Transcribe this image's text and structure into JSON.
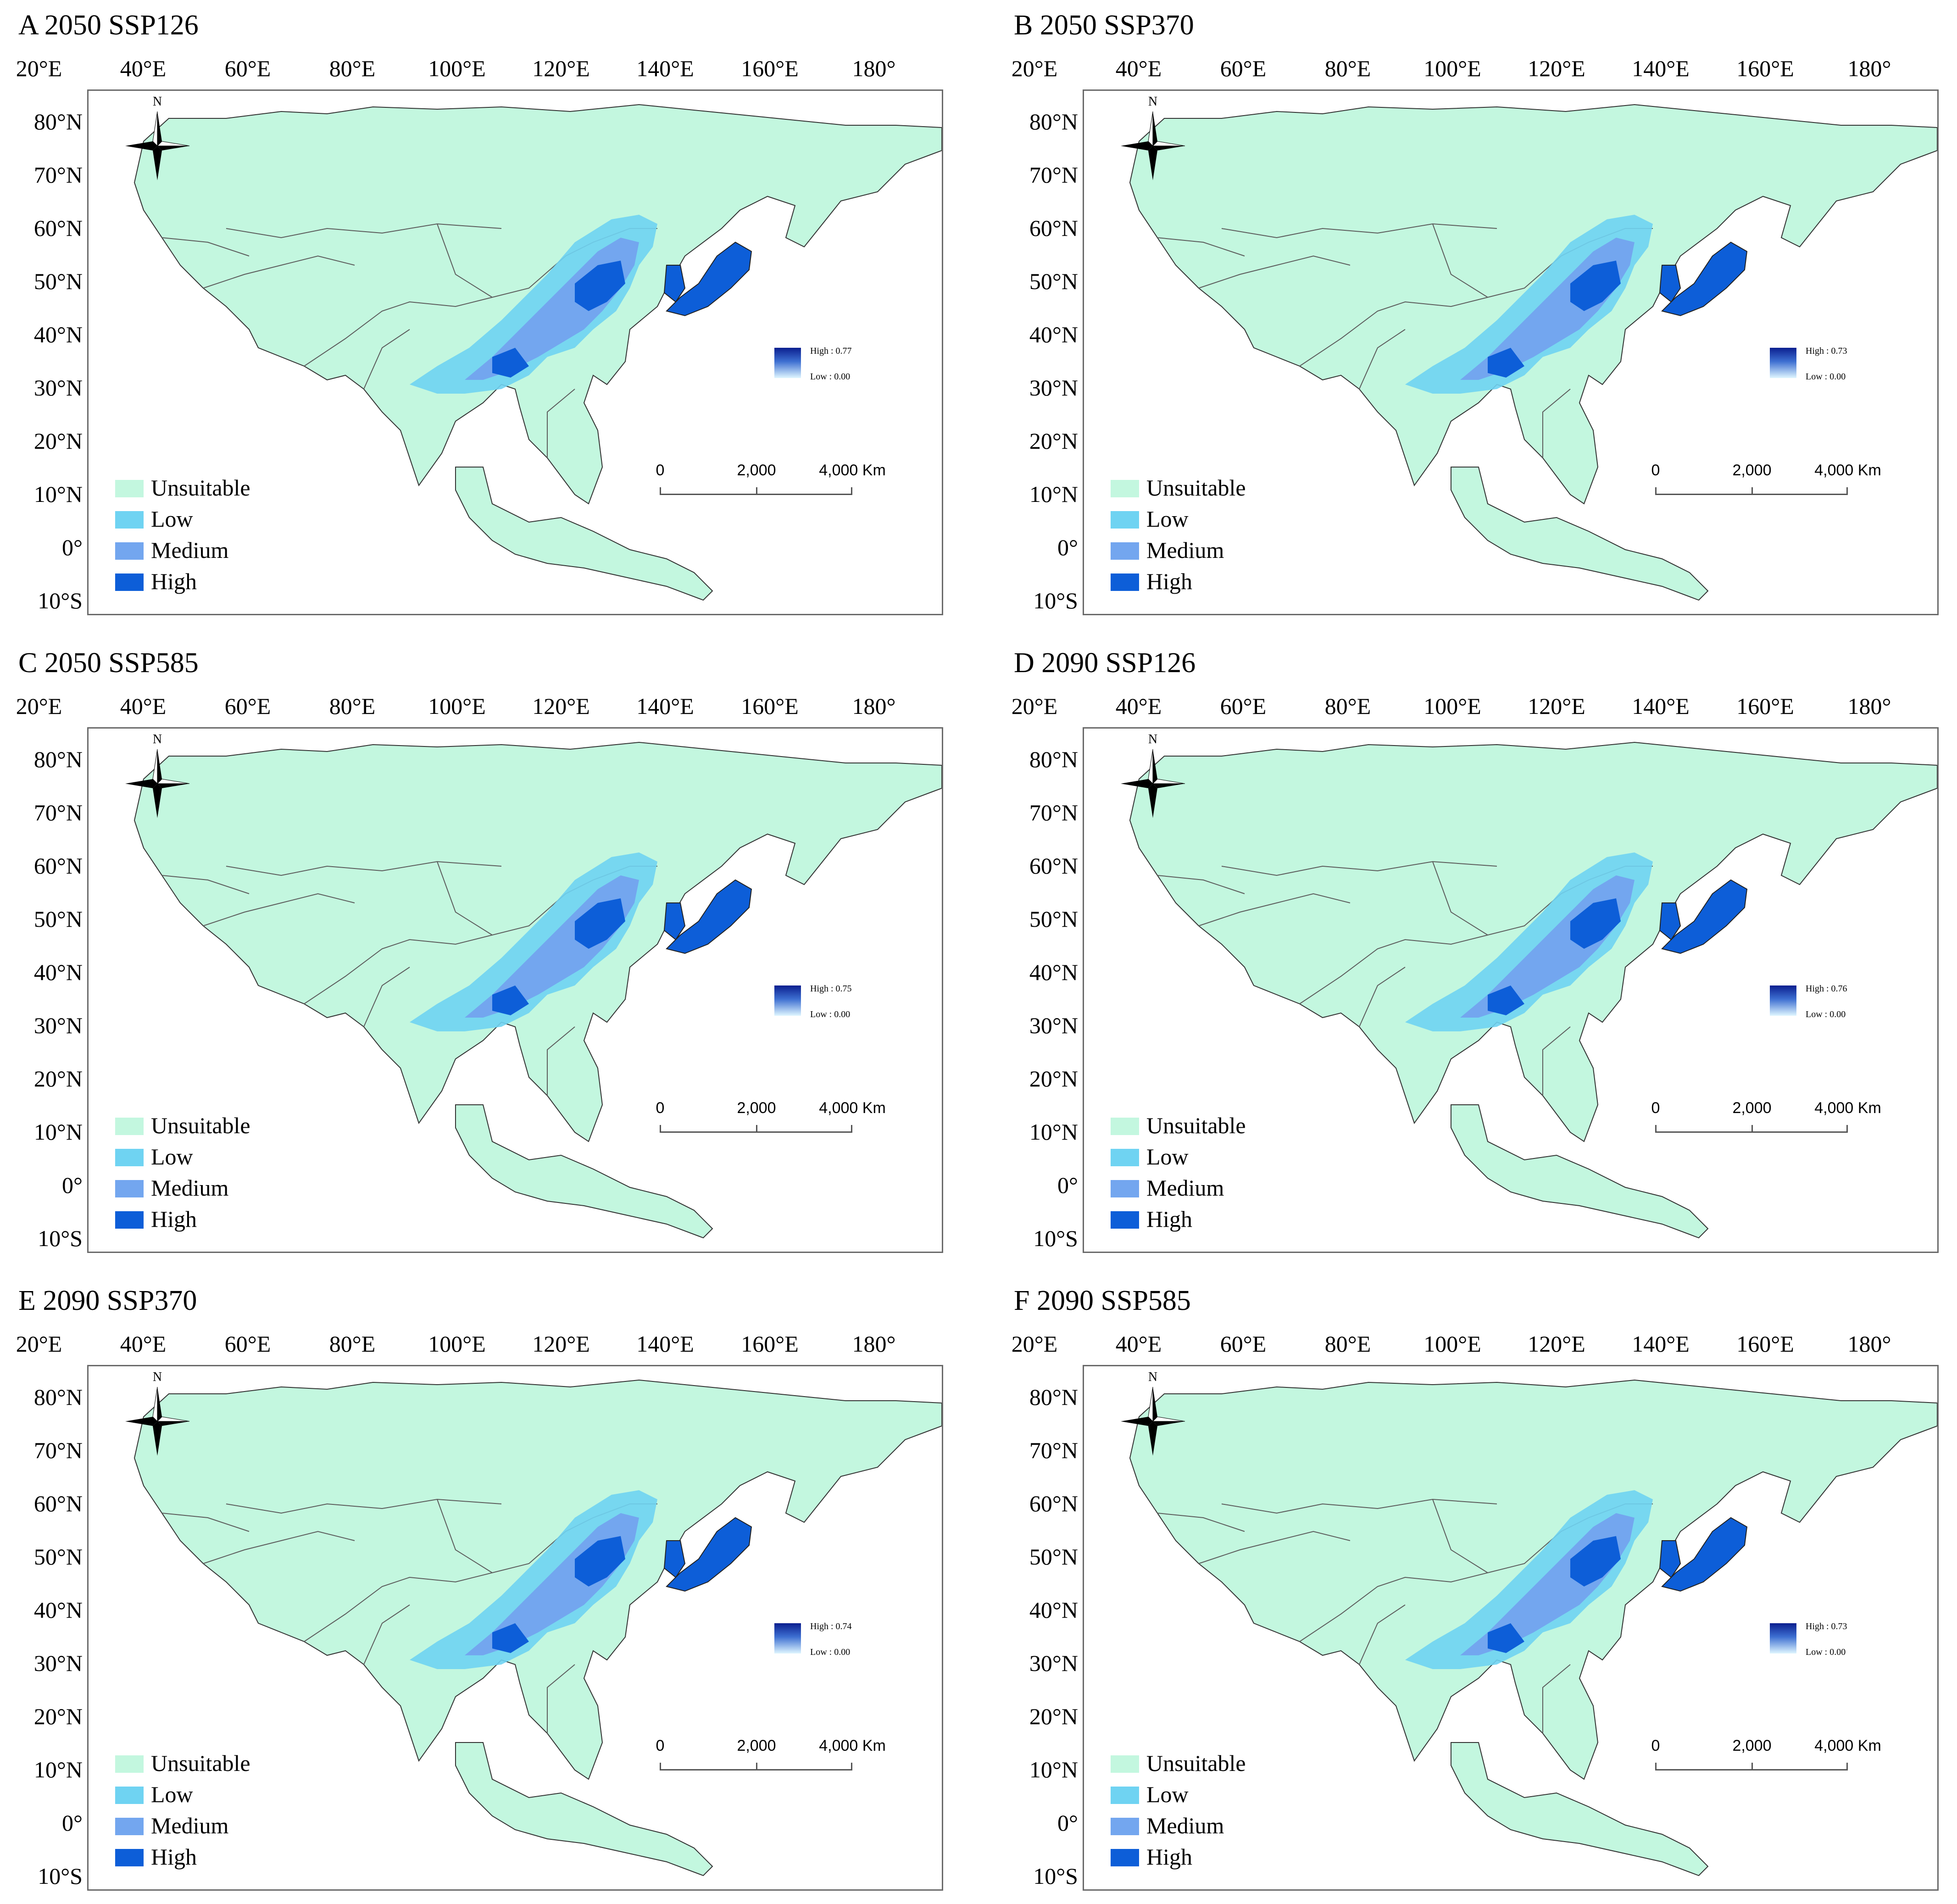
{
  "colors": {
    "unsuitable": "#c3f7df",
    "low": "#6fd3f2",
    "medium": "#73a6ef",
    "high": "#0d5ed8",
    "border": "#5c5c5c",
    "ocean": "#ffffff"
  },
  "axes": {
    "lon_labels": [
      "20°E",
      "40°E",
      "60°E",
      "80°E",
      "100°E",
      "120°E",
      "140°E",
      "160°E",
      "180°"
    ],
    "lat_labels": [
      "80°N",
      "70°N",
      "60°N",
      "50°N",
      "40°N",
      "30°N",
      "20°N",
      "10°N",
      "0°",
      "10°S"
    ]
  },
  "legend": {
    "classes": [
      {
        "label": "Unsuitable",
        "color": "#c3f7df"
      },
      {
        "label": "Low",
        "color": "#6fd3f2"
      },
      {
        "label": "Medium",
        "color": "#73a6ef"
      },
      {
        "label": "High",
        "color": "#0d5ed8"
      }
    ]
  },
  "compass": {
    "north_label": "N"
  },
  "scalebar": {
    "labels": [
      "0",
      "2,000",
      "4,000 Km"
    ]
  },
  "panels": [
    {
      "title": "A 2050 SSP126",
      "high": "High : 0.77",
      "low": "Low : 0.00"
    },
    {
      "title": "B 2050 SSP370",
      "high": "High : 0.73",
      "low": "Low : 0.00"
    },
    {
      "title": "C 2050 SSP585",
      "high": "High : 0.75",
      "low": "Low : 0.00"
    },
    {
      "title": "D 2090 SSP126",
      "high": "High : 0.76",
      "low": "Low : 0.00"
    },
    {
      "title": "E 2090 SSP370",
      "high": "High : 0.74",
      "low": "Low : 0.00"
    },
    {
      "title": "F 2090 SSP585",
      "high": "High : 0.73",
      "low": "Low : 0.00"
    }
  ]
}
